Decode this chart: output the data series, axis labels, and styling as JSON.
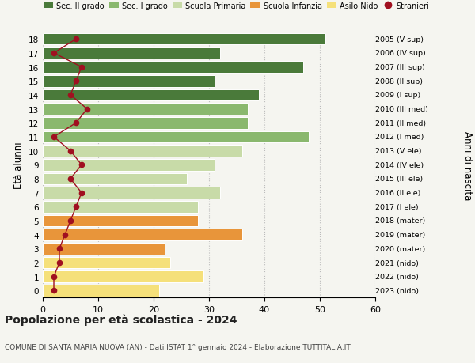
{
  "ages": [
    0,
    1,
    2,
    3,
    4,
    5,
    6,
    7,
    8,
    9,
    10,
    11,
    12,
    13,
    14,
    15,
    16,
    17,
    18
  ],
  "bar_values": [
    21,
    29,
    23,
    22,
    36,
    28,
    28,
    32,
    26,
    31,
    36,
    48,
    37,
    37,
    39,
    31,
    47,
    32,
    51
  ],
  "bar_colors": [
    "#f5e07a",
    "#f5e07a",
    "#f5e07a",
    "#e8953a",
    "#e8953a",
    "#e8953a",
    "#c8dba8",
    "#c8dba8",
    "#c8dba8",
    "#c8dba8",
    "#c8dba8",
    "#8ab86e",
    "#8ab86e",
    "#8ab86e",
    "#4a7a3a",
    "#4a7a3a",
    "#4a7a3a",
    "#4a7a3a",
    "#4a7a3a"
  ],
  "stranieri_values": [
    2,
    2,
    3,
    3,
    4,
    5,
    6,
    7,
    5,
    7,
    5,
    2,
    6,
    8,
    5,
    6,
    7,
    2,
    6
  ],
  "right_labels": [
    "2023 (nido)",
    "2022 (nido)",
    "2021 (nido)",
    "2020 (mater)",
    "2019 (mater)",
    "2018 (mater)",
    "2017 (I ele)",
    "2016 (II ele)",
    "2015 (III ele)",
    "2014 (IV ele)",
    "2013 (V ele)",
    "2012 (I med)",
    "2011 (II med)",
    "2010 (III med)",
    "2009 (I sup)",
    "2008 (II sup)",
    "2007 (III sup)",
    "2006 (IV sup)",
    "2005 (V sup)"
  ],
  "ylabel": "Età alunni",
  "right_ylabel": "Anni di nascita",
  "xlim": [
    0,
    60
  ],
  "xticks": [
    0,
    10,
    20,
    30,
    40,
    50,
    60
  ],
  "title": "Popolazione per età scolastica - 2024",
  "subtitle": "COMUNE DI SANTA MARIA NUOVA (AN) - Dati ISTAT 1° gennaio 2024 - Elaborazione TUTTITALIA.IT",
  "legend_labels": [
    "Sec. II grado",
    "Sec. I grado",
    "Scuola Primaria",
    "Scuola Infanzia",
    "Asilo Nido",
    "Stranieri"
  ],
  "legend_colors": [
    "#4a7a3a",
    "#8ab86e",
    "#c8dba8",
    "#e8953a",
    "#f5e07a",
    "#a01020"
  ],
  "bg_color": "#f5f5f0",
  "bar_height": 0.82,
  "stranieri_color": "#a01020"
}
